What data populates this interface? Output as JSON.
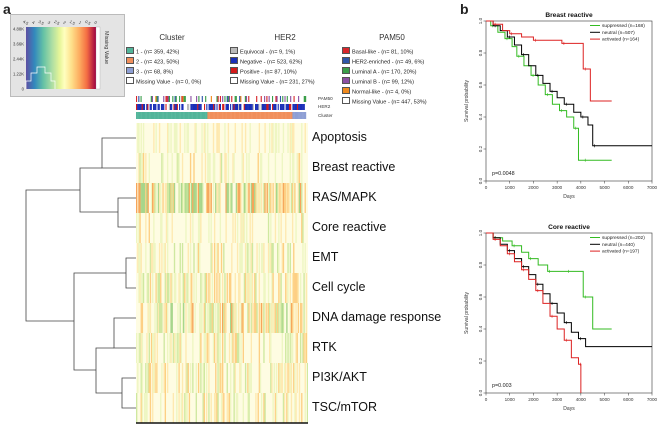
{
  "panels": {
    "a": "a",
    "b": "b"
  },
  "color_key": {
    "axis_ticks": [
      "4.5",
      "4",
      "3.5",
      "3",
      "2.5",
      "2",
      "1.5",
      "1",
      "0.5",
      "0"
    ],
    "count_ticks": [
      "4.88K",
      "3.66K",
      "2.44K",
      "1.22K",
      "0"
    ],
    "missing_label": "Missing Value"
  },
  "legends": {
    "cluster": {
      "title": "Cluster",
      "items": [
        {
          "label": "1 - (n= 359, 42%)",
          "color": "#52b59a"
        },
        {
          "label": "2 - (n= 423, 50%)",
          "color": "#f18f5c"
        },
        {
          "label": "3 - (n= 68, 8%)",
          "color": "#8e9fd4"
        },
        {
          "label": "Missing Value - (n= 0, 0%)",
          "color": "#ffffff"
        }
      ]
    },
    "her2": {
      "title": "HER2",
      "items": [
        {
          "label": "Equivocal - (n= 9, 1%)",
          "color": "#bbbbbb"
        },
        {
          "label": "Negative - (n= 523, 62%)",
          "color": "#1a2fb8"
        },
        {
          "label": "Positive - (n= 87, 10%)",
          "color": "#d31a1a"
        },
        {
          "label": "Missing Value - (n= 231, 27%)",
          "color": "#ffffff"
        }
      ]
    },
    "pam50": {
      "title": "PAM50",
      "items": [
        {
          "label": "Basal-like - (n= 81, 10%)",
          "color": "#d7262b"
        },
        {
          "label": "HER2-enriched - (n= 49, 6%)",
          "color": "#2f56a8"
        },
        {
          "label": "Luminal A - (n= 170, 20%)",
          "color": "#3a9e49"
        },
        {
          "label": "Luminal B - (n= 99, 12%)",
          "color": "#8c4fa3"
        },
        {
          "label": "Normal-like - (n= 4, 0%)",
          "color": "#f08a1e"
        },
        {
          "label": "Missing Value - (n= 447, 53%)",
          "color": "#ffffff"
        }
      ]
    }
  },
  "tracks": [
    "PAM50",
    "HER2",
    "Cluster"
  ],
  "pathways": [
    "Apoptosis",
    "Breast reactive",
    "RAS/MAPK",
    "Core reactive",
    "EMT",
    "Cell cycle",
    "DNA damage response",
    "RTK",
    "PI3K/AKT",
    "TSC/mTOR"
  ],
  "chart_data": [
    {
      "type": "line",
      "title": "Breast reactive",
      "xlabel": "Days",
      "ylabel": "Survival probability",
      "xlim": [
        0,
        7000
      ],
      "ylim": [
        0,
        1
      ],
      "xticks": [
        0,
        1000,
        2000,
        3000,
        4000,
        5000,
        6000,
        7000
      ],
      "yticks": [
        0.0,
        0.2,
        0.4,
        0.6,
        0.8,
        1.0
      ],
      "annotation": "p=0.0048",
      "series": [
        {
          "name": "suppressed (n=168)",
          "color": "#33bb22",
          "x": [
            0,
            200,
            500,
            800,
            1100,
            1300,
            1600,
            1900,
            2200,
            2500,
            2800,
            3100,
            3400,
            3700,
            3900,
            4100,
            5300
          ],
          "y": [
            1.0,
            0.97,
            0.93,
            0.89,
            0.84,
            0.78,
            0.72,
            0.66,
            0.6,
            0.54,
            0.48,
            0.44,
            0.4,
            0.33,
            0.13,
            0.13,
            0.13
          ]
        },
        {
          "name": "neutral (n=507)",
          "color": "#000000",
          "x": [
            0,
            300,
            600,
            900,
            1200,
            1500,
            1800,
            2100,
            2400,
            2700,
            3000,
            3300,
            3700,
            4000,
            4300,
            4500,
            7000
          ],
          "y": [
            1.0,
            0.97,
            0.94,
            0.9,
            0.85,
            0.79,
            0.72,
            0.66,
            0.61,
            0.56,
            0.52,
            0.48,
            0.43,
            0.4,
            0.35,
            0.22,
            0.22
          ]
        },
        {
          "name": "activated (n=164)",
          "color": "#dd2222",
          "x": [
            0,
            300,
            700,
            1000,
            1500,
            2000,
            2600,
            3200,
            3800,
            4100,
            4400,
            5300
          ],
          "y": [
            1.0,
            0.98,
            0.94,
            0.92,
            0.9,
            0.88,
            0.88,
            0.86,
            0.86,
            0.7,
            0.5,
            0.5
          ]
        }
      ]
    },
    {
      "type": "line",
      "title": "Core reactive",
      "xlabel": "Days",
      "ylabel": "Survival probability",
      "xlim": [
        0,
        7000
      ],
      "ylim": [
        0,
        1
      ],
      "xticks": [
        0,
        1000,
        2000,
        3000,
        4000,
        5000,
        6000,
        7000
      ],
      "yticks": [
        0.0,
        0.2,
        0.4,
        0.6,
        0.8,
        1.0
      ],
      "annotation": "p=0.003",
      "series": [
        {
          "name": "suppressed (n=202)",
          "color": "#33bb22",
          "x": [
            0,
            300,
            700,
            1100,
            1500,
            1800,
            2200,
            2600,
            3000,
            3400,
            3800,
            4100,
            4500,
            5300
          ],
          "y": [
            1.0,
            0.97,
            0.95,
            0.92,
            0.88,
            0.84,
            0.8,
            0.76,
            0.76,
            0.76,
            0.76,
            0.6,
            0.4,
            0.4
          ]
        },
        {
          "name": "neutral (n=440)",
          "color": "#000000",
          "x": [
            0,
            300,
            600,
            900,
            1200,
            1500,
            1800,
            2100,
            2400,
            2700,
            3000,
            3300,
            3600,
            3900,
            4200,
            7000
          ],
          "y": [
            1.0,
            0.97,
            0.93,
            0.89,
            0.84,
            0.79,
            0.74,
            0.68,
            0.62,
            0.56,
            0.5,
            0.44,
            0.38,
            0.34,
            0.29,
            0.29
          ]
        },
        {
          "name": "activated (n=197)",
          "color": "#dd2222",
          "x": [
            0,
            300,
            600,
            900,
            1200,
            1500,
            1800,
            2100,
            2400,
            2700,
            3000,
            3300,
            3600,
            3900,
            4000
          ],
          "y": [
            1.0,
            0.96,
            0.92,
            0.87,
            0.82,
            0.77,
            0.71,
            0.64,
            0.56,
            0.48,
            0.4,
            0.33,
            0.22,
            0.18,
            0.0
          ]
        }
      ]
    }
  ]
}
